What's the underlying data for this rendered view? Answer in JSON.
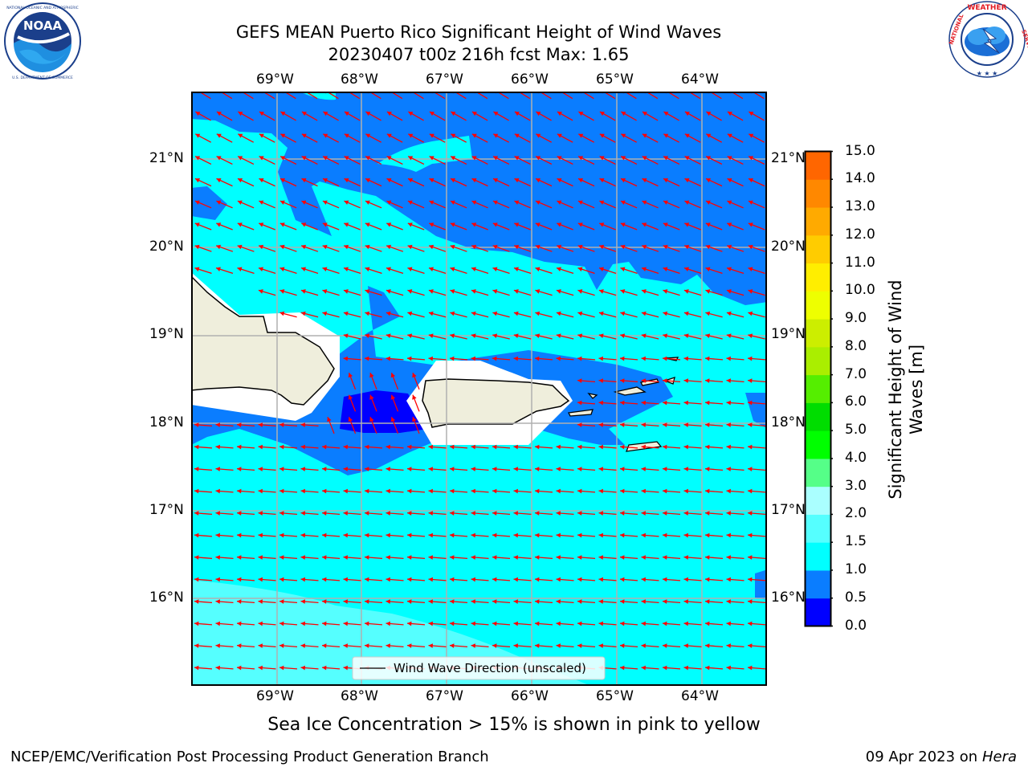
{
  "header": {
    "title_line1": "GEFS MEAN Puerto Rico Significant Height of Wind Waves",
    "title_line2": "20230407 t00z 216h fcst   Max: 1.65"
  },
  "logos": {
    "left": {
      "name": "NOAA",
      "ring_text": "NATIONAL OCEANIC AND ATMOSPHERIC ADMINISTRATION",
      "bottom_text": "U.S. DEPARTMENT OF COMMERCE"
    },
    "right": {
      "ring_text": "NATIONAL WEATHER SERVICE"
    }
  },
  "map": {
    "lon_labels": [
      "69°W",
      "68°W",
      "67°W",
      "66°W",
      "65°W",
      "64°W"
    ],
    "lat_labels": [
      "21°N",
      "20°N",
      "19°N",
      "18°N",
      "17°N",
      "16°N"
    ],
    "legend": "Wind Wave Direction (unscaled)",
    "colors": {
      "land": "#efeedc",
      "vectors": "#ff0000",
      "grid": "#b0b0b0"
    }
  },
  "colorbar": {
    "label": "Significant Height of Wind Waves [m]",
    "label_line1": "Significant Height of Wind",
    "label_line2": "Waves [m]",
    "ticks": [
      "15.0",
      "14.0",
      "13.0",
      "12.0",
      "11.0",
      "10.0",
      "9.0",
      "8.0",
      "7.0",
      "6.0",
      "5.0",
      "4.0",
      "3.0",
      "2.0",
      "1.5",
      "1.0",
      "0.5",
      "0.0"
    ],
    "levels_bottom_to_top": [
      "#0000ff",
      "#0a7dff",
      "#00ffff",
      "#55ffff",
      "#aaffff",
      "#55ff88",
      "#00ff00",
      "#00dd00",
      "#55ee00",
      "#aaee00",
      "#ccee00",
      "#eeff00",
      "#ffee00",
      "#ffcc00",
      "#ffaa00",
      "#ff8800",
      "#ff6600",
      "#ff4400",
      "#ff1100",
      "#ff0000"
    ]
  },
  "notes": {
    "sea_ice": "Sea Ice Concentration > 15% is shown in pink to yellow"
  },
  "footer": {
    "left": "NCEP/EMC/Verification Post Processing Product Generation Branch",
    "date": "09 Apr 2023 on ",
    "machine": "Hera"
  }
}
